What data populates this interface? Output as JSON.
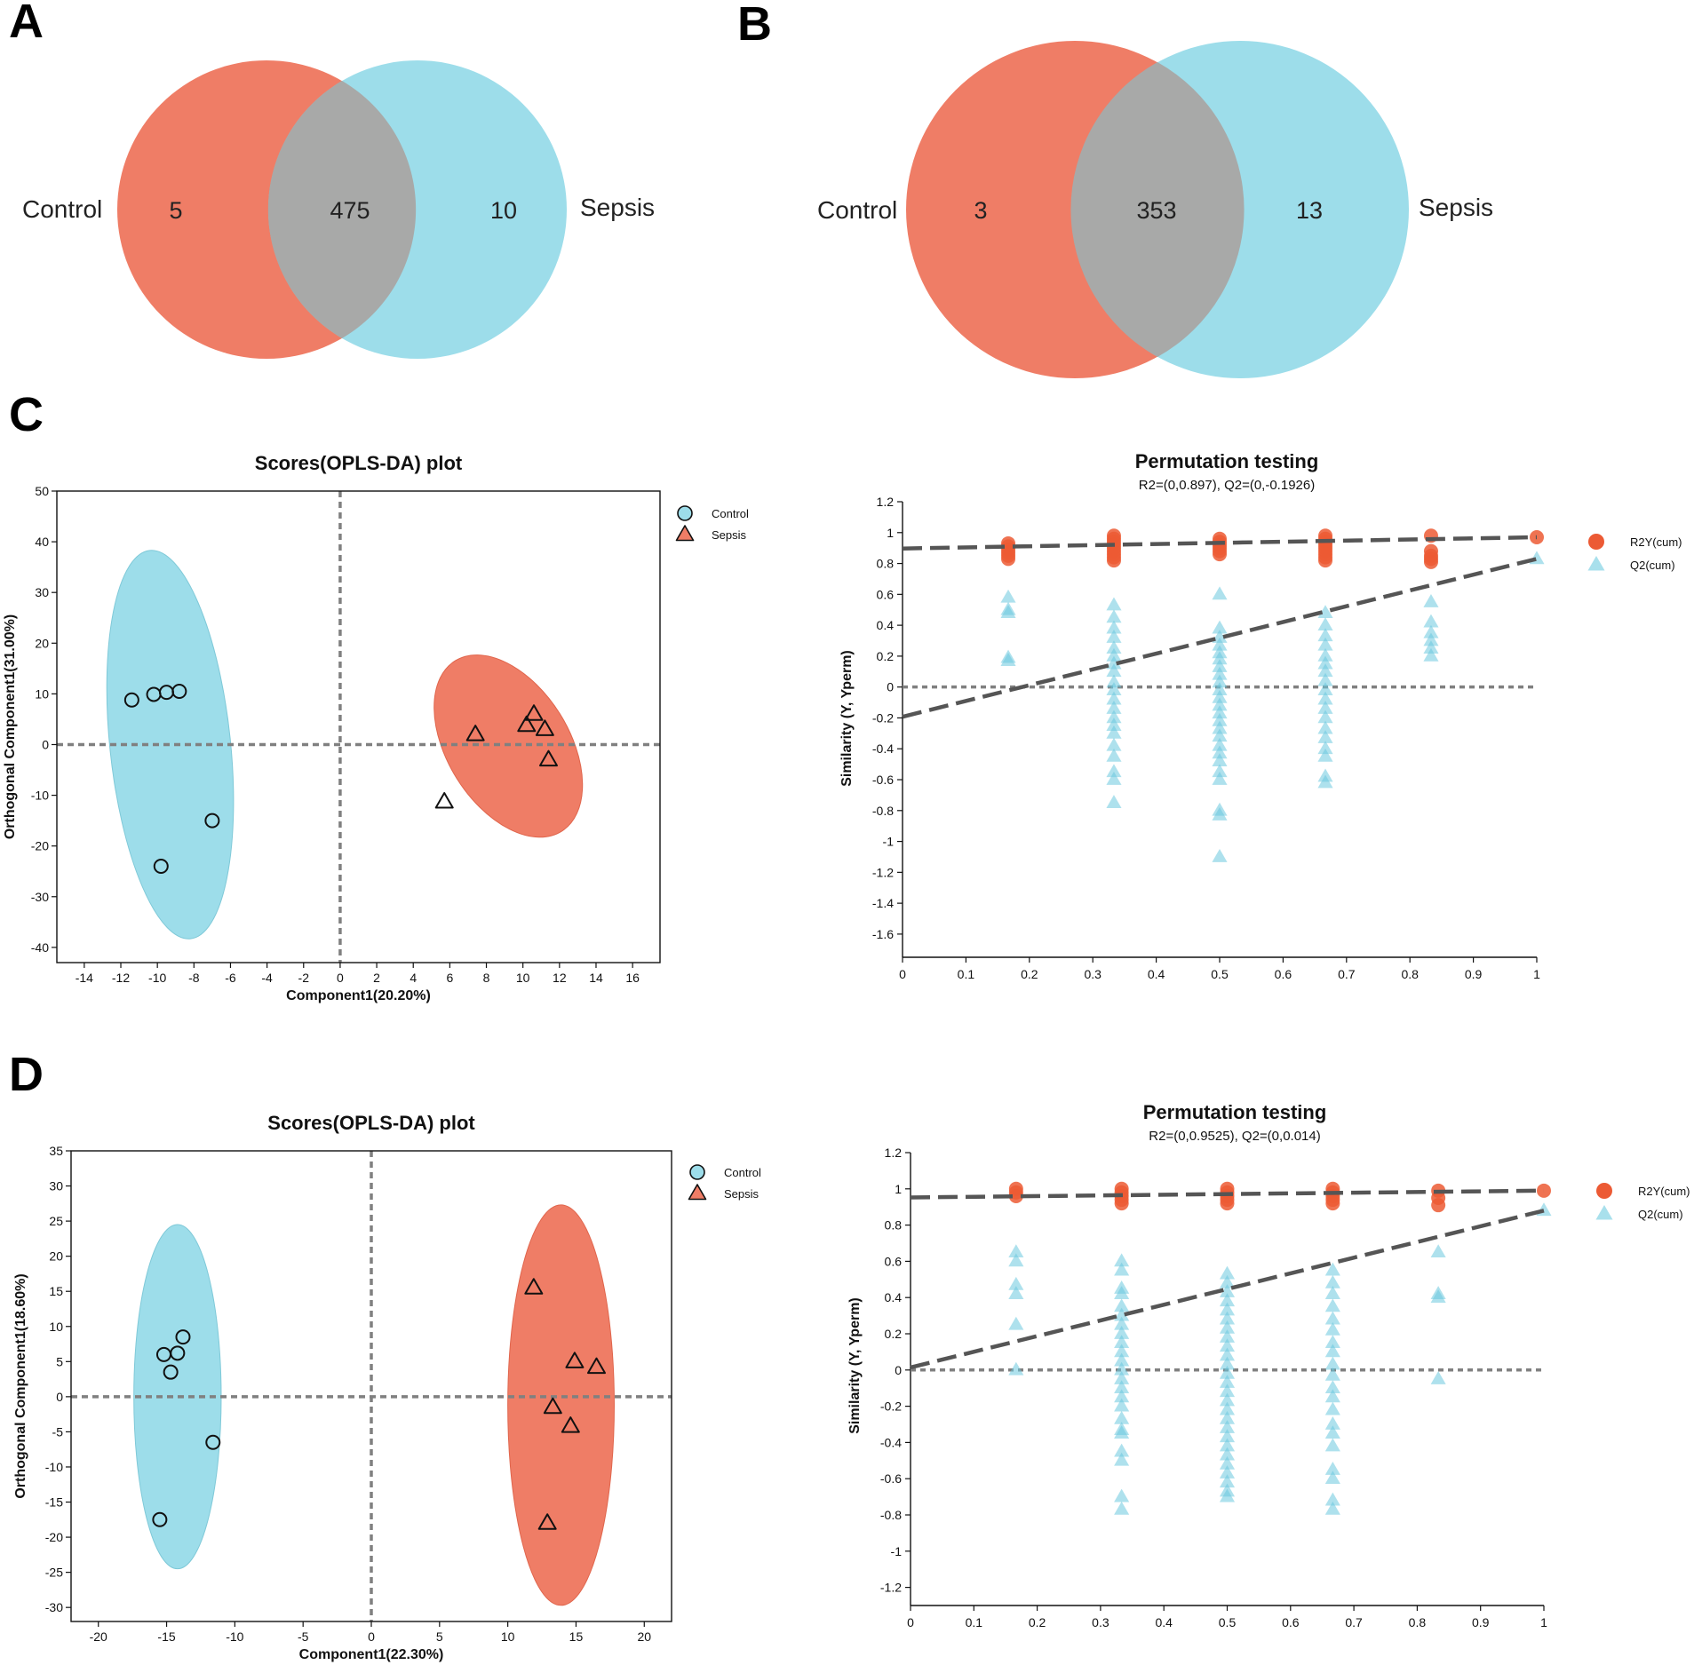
{
  "colors": {
    "control_fill": "#EF7D66",
    "sepsis_fill": "#9DDDEA",
    "overlap_fill": "#A8A9A8",
    "r2y": "#EC5A34",
    "q2": "#6BC8DE",
    "q2_light": "#A8E0EC",
    "reg_line": "#555555",
    "zero_line": "#808080"
  },
  "panels": {
    "A": "A",
    "B": "B",
    "C": "C",
    "D": "D"
  },
  "chart_data": [
    {
      "id": "A",
      "type": "venn",
      "sets": [
        "Control",
        "Sepsis"
      ],
      "counts": {
        "only_left": "5",
        "overlap": "475",
        "only_right": "10"
      }
    },
    {
      "id": "B",
      "type": "venn",
      "sets": [
        "Control",
        "Sepsis"
      ],
      "counts": {
        "only_left": "3",
        "overlap": "353",
        "only_right": "13"
      }
    },
    {
      "id": "C-scores",
      "type": "scatter",
      "title": "Scores(OPLS-DA) plot",
      "xlabel": "Component1(20.20%)",
      "ylabel": "Orthogonal Component1(31.00%)",
      "xlim": [
        -15.5,
        17.5
      ],
      "ylim": [
        -43,
        50
      ],
      "xticks": [
        -14,
        -12,
        -10,
        -8,
        -6,
        -4,
        -2,
        0,
        2,
        4,
        6,
        8,
        10,
        12,
        14,
        16
      ],
      "yticks": [
        -40,
        -30,
        -20,
        -10,
        0,
        10,
        20,
        30,
        40,
        50
      ],
      "legend": [
        "Control",
        "Sepsis"
      ],
      "series": [
        {
          "name": "Control",
          "marker": "circle",
          "points": [
            [
              -11.4,
              8.8
            ],
            [
              -10.2,
              9.9
            ],
            [
              -9.5,
              10.3
            ],
            [
              -8.8,
              10.5
            ],
            [
              -7.0,
              -15.0
            ],
            [
              -9.8,
              -24.0
            ]
          ],
          "ellipse": {
            "cx": -9.3,
            "cy": 0,
            "rx": 3.3,
            "ry": 38.5,
            "angle_deg": -6
          }
        },
        {
          "name": "Sepsis",
          "marker": "triangle",
          "points": [
            [
              7.4,
              2.0
            ],
            [
              10.6,
              6.0
            ],
            [
              10.2,
              3.8
            ],
            [
              11.2,
              3.0
            ],
            [
              11.4,
              -3.0
            ],
            [
              5.7,
              -11.3
            ]
          ],
          "ellipse": {
            "cx": 9.2,
            "cy": -0.3,
            "rx": 5.5,
            "ry": 12.0,
            "angle_deg": 58
          }
        }
      ]
    },
    {
      "id": "C-perm",
      "type": "scatter",
      "title": "Permutation testing",
      "subtitle": "R2=(0,0.897), Q2=(0,-0.1926)",
      "ylabel": "Similarity (Y, Yperm)",
      "xlim": [
        0,
        1
      ],
      "ylim": [
        -1.75,
        1.2
      ],
      "xticks": [
        "0",
        "0.1",
        "0.2",
        "0.3",
        "0.4",
        "0.5",
        "0.6",
        "0.7",
        "0.8",
        "0.9",
        "1"
      ],
      "yticks": [
        "1.2",
        "1",
        "0.8",
        "0.6",
        "0.4",
        "0.2",
        "0",
        "-0.2",
        "-0.4",
        "-0.6",
        "-0.8",
        "-1",
        "-1.2",
        "-1.4",
        "-1.6"
      ],
      "legend": [
        "R2Y(cum)",
        "Q2(cum)"
      ],
      "r2_line": [
        0,
        0.897
      ],
      "q2_line": [
        0,
        -0.1926
      ],
      "r2_end": 0.97,
      "q2_end": 0.83,
      "r2y_points": {
        "0.1667": [
          0.93,
          0.91,
          0.89,
          0.87,
          0.85,
          0.83
        ],
        "0.3333": [
          0.98,
          0.96,
          0.94,
          0.92,
          0.9,
          0.88,
          0.86,
          0.84,
          0.82
        ],
        "0.5": [
          0.96,
          0.94,
          0.92,
          0.9,
          0.88,
          0.86
        ],
        "0.6667": [
          0.98,
          0.96,
          0.94,
          0.92,
          0.9,
          0.88,
          0.86,
          0.84,
          0.82
        ],
        "0.8333": [
          0.98,
          0.88,
          0.85,
          0.83,
          0.81
        ],
        "1": [
          0.97
        ]
      },
      "q2_points": {
        "0.1667": [
          0.58,
          0.5,
          0.48,
          0.19,
          0.17
        ],
        "0.3333": [
          0.53,
          0.45,
          0.38,
          0.32,
          0.25,
          0.2,
          0.15,
          0.1,
          0.03,
          -0.02,
          -0.08,
          -0.14,
          -0.2,
          -0.25,
          -0.3,
          -0.38,
          -0.45,
          -0.55,
          -0.6,
          -0.75
        ],
        "0.5": [
          0.6,
          0.38,
          0.32,
          0.27,
          0.22,
          0.18,
          0.13,
          0.08,
          0.03,
          -0.02,
          -0.07,
          -0.12,
          -0.17,
          -0.22,
          -0.27,
          -0.32,
          -0.38,
          -0.43,
          -0.48,
          -0.55,
          -0.6,
          -0.8,
          -0.83,
          -1.1
        ],
        "0.6667": [
          0.48,
          0.4,
          0.33,
          0.27,
          0.2,
          0.15,
          0.1,
          0.04,
          -0.02,
          -0.08,
          -0.14,
          -0.2,
          -0.27,
          -0.33,
          -0.4,
          -0.45,
          -0.58,
          -0.62
        ],
        "0.8333": [
          0.55,
          0.42,
          0.35,
          0.3,
          0.25,
          0.2
        ],
        "1": [
          0.83
        ]
      }
    },
    {
      "id": "D-scores",
      "type": "scatter",
      "title": "Scores(OPLS-DA) plot",
      "xlabel": "Component1(22.30%)",
      "ylabel": "Orthogonal Component1(18.60%)",
      "xlim": [
        -22,
        22
      ],
      "ylim": [
        -32,
        35
      ],
      "xticks": [
        -20,
        -15,
        -10,
        -5,
        0,
        5,
        10,
        15,
        20
      ],
      "yticks": [
        -30,
        -25,
        -20,
        -15,
        -10,
        -5,
        0,
        5,
        10,
        15,
        20,
        25,
        30,
        35
      ],
      "legend": [
        "Control",
        "Sepsis"
      ],
      "series": [
        {
          "name": "Control",
          "marker": "circle",
          "points": [
            [
              -13.8,
              8.5
            ],
            [
              -15.2,
              6.0
            ],
            [
              -14.2,
              6.2
            ],
            [
              -14.7,
              3.5
            ],
            [
              -11.6,
              -6.5
            ],
            [
              -15.5,
              -17.5
            ]
          ],
          "ellipse": {
            "cx": -14.2,
            "cy": 0,
            "rx": 3.2,
            "ry": 24.5,
            "angle_deg": 0
          }
        },
        {
          "name": "Sepsis",
          "marker": "triangle",
          "points": [
            [
              11.9,
              15.5
            ],
            [
              14.9,
              5.0
            ],
            [
              16.5,
              4.2
            ],
            [
              13.3,
              -1.5
            ],
            [
              14.6,
              -4.2
            ],
            [
              12.9,
              -18.0
            ]
          ],
          "ellipse": {
            "cx": 13.9,
            "cy": -1.2,
            "rx": 3.9,
            "ry": 28.5,
            "angle_deg": 0
          }
        }
      ]
    },
    {
      "id": "D-perm",
      "type": "scatter",
      "title": "Permutation testing",
      "subtitle": "R2=(0,0.9525), Q2=(0,0.014)",
      "ylabel": "Similarity (Y, Yperm)",
      "xlim": [
        0,
        1
      ],
      "ylim": [
        -1.3,
        1.2
      ],
      "xticks": [
        "0",
        "0.1",
        "0.2",
        "0.3",
        "0.4",
        "0.5",
        "0.6",
        "0.7",
        "0.8",
        "0.9",
        "1"
      ],
      "yticks": [
        "1.2",
        "1",
        "0.8",
        "0.6",
        "0.4",
        "0.2",
        "0",
        "-0.2",
        "-0.4",
        "-0.6",
        "-0.8",
        "-1",
        "-1.2"
      ],
      "legend": [
        "R2Y(cum)",
        "Q2(cum)"
      ],
      "r2_line": [
        0,
        0.9525
      ],
      "q2_line": [
        0,
        0.014
      ],
      "r2_end": 0.99,
      "q2_end": 0.88,
      "r2y_points": {
        "0.1667": [
          1.0,
          0.98,
          0.96
        ],
        "0.3333": [
          1.0,
          0.98,
          0.96,
          0.94,
          0.92
        ],
        "0.5": [
          1.0,
          0.98,
          0.96,
          0.94,
          0.92
        ],
        "0.6667": [
          1.0,
          0.98,
          0.96,
          0.94,
          0.92
        ],
        "0.8333": [
          0.99,
          0.95,
          0.91
        ],
        "1": [
          0.99
        ]
      },
      "q2_points": {
        "0.1667": [
          0.65,
          0.6,
          0.47,
          0.42,
          0.25,
          0.0
        ],
        "0.3333": [
          0.6,
          0.55,
          0.45,
          0.42,
          0.35,
          0.3,
          0.25,
          0.2,
          0.15,
          0.1,
          0.05,
          0.0,
          -0.05,
          -0.1,
          -0.15,
          -0.2,
          -0.27,
          -0.33,
          -0.35,
          -0.45,
          -0.5,
          -0.7,
          -0.77
        ],
        "0.5": [
          0.53,
          0.48,
          0.43,
          0.38,
          0.33,
          0.28,
          0.23,
          0.18,
          0.13,
          0.08,
          0.03,
          -0.02,
          -0.07,
          -0.12,
          -0.17,
          -0.22,
          -0.27,
          -0.32,
          -0.37,
          -0.42,
          -0.47,
          -0.52,
          -0.57,
          -0.62,
          -0.67,
          -0.7
        ],
        "0.6667": [
          0.55,
          0.48,
          0.42,
          0.35,
          0.28,
          0.22,
          0.15,
          0.1,
          0.03,
          -0.03,
          -0.1,
          -0.15,
          -0.22,
          -0.3,
          -0.35,
          -0.42,
          -0.55,
          -0.6,
          -0.72,
          -0.77
        ],
        "0.8333": [
          0.65,
          0.42,
          0.4,
          -0.05
        ],
        "1": [
          0.88
        ]
      }
    }
  ]
}
